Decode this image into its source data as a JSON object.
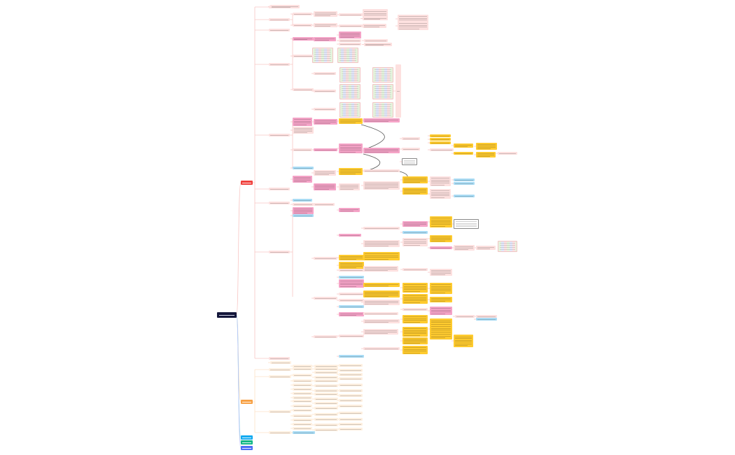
{
  "mindmap": {
    "root": {
      "label": "",
      "color": "#14163a"
    },
    "branches": [
      {
        "label": "",
        "color": "#f0403c",
        "line_color": "#f8c6c4",
        "node_color": "#fde0df",
        "highlight_color": "#f7a8c8",
        "note_color": "#ffc62e"
      },
      {
        "label": "",
        "color": "#f7a043",
        "line_color": "#fde2c6",
        "node_color": "#fff0e0"
      },
      {
        "label": "",
        "color": "#10aaf0"
      },
      {
        "label": "",
        "color": "#12b886"
      },
      {
        "label": "",
        "color": "#4c6ef5"
      }
    ],
    "accent_colors": {
      "pink": "#f5a3c7",
      "yellow": "#ffcb2f",
      "light_blue": "#a9dcf5",
      "light_red": "#fde1e0"
    }
  }
}
